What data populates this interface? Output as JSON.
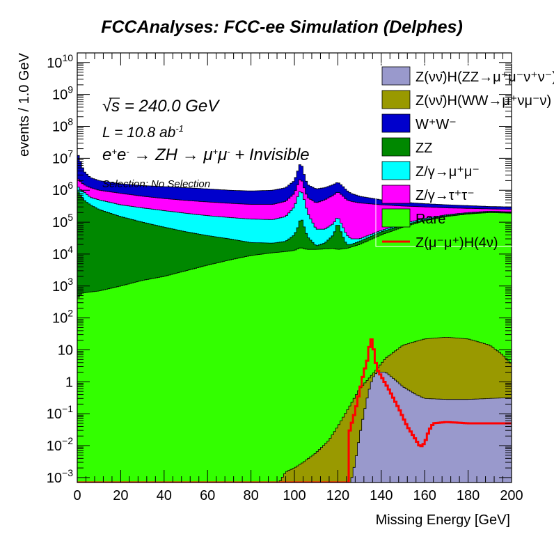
{
  "chart_data": {
    "type": "area",
    "stacked": true,
    "title": "FCCAnalyses: FCC-ee Simulation (Delphes)",
    "xlabel": "Missing Energy [GeV]",
    "ylabel": "events / 1.0 GeV",
    "xlim": [
      0,
      200
    ],
    "ylim": [
      0.0007,
      20000000000
    ],
    "yscale": "log",
    "xticks": [
      0,
      20,
      40,
      60,
      80,
      100,
      120,
      140,
      160,
      180,
      200
    ],
    "yticks": [
      {
        "value": 0.001,
        "label": "10^-3",
        "base": "10",
        "exp": "−3"
      },
      {
        "value": 0.01,
        "label": "10^-2",
        "base": "10",
        "exp": "−2"
      },
      {
        "value": 0.1,
        "label": "10^-1",
        "base": "10",
        "exp": "−1"
      },
      {
        "value": 1,
        "label": "1",
        "base": "1",
        "exp": ""
      },
      {
        "value": 10,
        "label": "10",
        "base": "10",
        "exp": ""
      },
      {
        "value": 100,
        "label": "10^2",
        "base": "10",
        "exp": "2"
      },
      {
        "value": 1000,
        "label": "10^3",
        "base": "10",
        "exp": "3"
      },
      {
        "value": 10000,
        "label": "10^4",
        "base": "10",
        "exp": "4"
      },
      {
        "value": 100000,
        "label": "10^5",
        "base": "10",
        "exp": "5"
      },
      {
        "value": 1000000,
        "label": "10^6",
        "base": "10",
        "exp": "6"
      },
      {
        "value": 10000000,
        "label": "10^7",
        "base": "10",
        "exp": "7"
      },
      {
        "value": 100000000,
        "label": "10^8",
        "base": "10",
        "exp": "8"
      },
      {
        "value": 1000000000,
        "label": "10^9",
        "base": "10",
        "exp": "9"
      },
      {
        "value": 10000000000,
        "label": "10^10",
        "base": "10",
        "exp": "10"
      }
    ],
    "annotations": {
      "sqrt_s": "√s = 240.0 GeV",
      "lumi": "L = 10.8 ab^-1",
      "process": "e+e- → ZH → μ+μ- + Invisible",
      "selection": "Selection: No Selection"
    },
    "legend_position": "top-right",
    "series_note": "values are cumulative stack heights (events / 1.0 GeV) at the listed x points; red signal is drawn unstacked",
    "series": [
      {
        "name": "Z(νν̄)H(ZZ→μ+μ-ν+ν-)",
        "legend": "Z(νν̄)H(ZZ→μ⁺μ⁻ν⁺ν⁻)",
        "color": "#9999cc",
        "stacked": true,
        "x": [
          0,
          126,
          128,
          130,
          132,
          134,
          136,
          138,
          142,
          146,
          150,
          156,
          160,
          170,
          180,
          190,
          200
        ],
        "values": [
          0.0007,
          0.0007,
          0.003,
          0.02,
          0.1,
          0.45,
          1.3,
          2.0,
          2.0,
          1.2,
          0.7,
          0.4,
          0.3,
          0.28,
          0.28,
          0.3,
          0.32
        ]
      },
      {
        "name": "Z(νν̄)H(WW→μ+νμ-ν)",
        "legend": "Z(νν̄)H(WW→μ⁺νμ⁻ν)",
        "color": "#999900",
        "stacked": true,
        "x": [
          0,
          93,
          96,
          100,
          104,
          110,
          116,
          120,
          126,
          130,
          134,
          138,
          142,
          150,
          160,
          170,
          180,
          190,
          196,
          200
        ],
        "values": [
          0.0007,
          0.0007,
          0.0015,
          0.002,
          0.003,
          0.006,
          0.015,
          0.04,
          0.2,
          0.6,
          1.2,
          2.5,
          5.5,
          14,
          22,
          25,
          22,
          14,
          7,
          3.5
        ]
      },
      {
        "name": "Rare",
        "legend": "Rare",
        "color": "#33ff00",
        "stacked": true,
        "x": [
          0,
          2,
          10,
          20,
          30,
          40,
          50,
          60,
          70,
          80,
          90,
          96,
          100,
          102,
          103,
          104,
          106,
          110,
          114,
          118,
          120,
          124,
          130,
          140,
          150,
          160,
          170,
          180,
          190,
          200
        ],
        "values": [
          400,
          600,
          700,
          1000,
          1500,
          2000,
          3000,
          4500,
          6500,
          9000,
          11000,
          12000,
          13000,
          15000,
          16000,
          15000,
          14000,
          14000,
          14500,
          15000,
          14000,
          15000,
          20000,
          40000,
          70000,
          110000,
          150000,
          180000,
          200000,
          190000
        ]
      },
      {
        "name": "Z(μ-μ+)H(4ν)",
        "legend": "Z(μ⁻μ⁺)H(4ν)",
        "color": "#ff0000",
        "stacked": false,
        "x": [
          0,
          125,
          125.5,
          128,
          130,
          132,
          134,
          135,
          136,
          137,
          138,
          140,
          144,
          148,
          152,
          156,
          158,
          160,
          162,
          164,
          170,
          180,
          190,
          200
        ],
        "values": [
          0.0007,
          0.0007,
          0.03,
          0.12,
          0.5,
          2.0,
          6.0,
          25,
          18,
          6.0,
          2.5,
          1.5,
          0.5,
          0.15,
          0.04,
          0.015,
          0.009,
          0.012,
          0.03,
          0.05,
          0.055,
          0.05,
          0.05,
          0.05
        ]
      },
      {
        "name": "ZZ",
        "legend": "ZZ",
        "color": "#008800",
        "stacked": true,
        "x": [
          0,
          1,
          3,
          6,
          10,
          20,
          30,
          40,
          50,
          60,
          70,
          80,
          90,
          96,
          100,
          102,
          103,
          104,
          106,
          110,
          114,
          118,
          120,
          122,
          124,
          126,
          130,
          140,
          150,
          160,
          170,
          180,
          190,
          200
        ],
        "values": [
          1000000,
          800000,
          500000,
          350000,
          250000,
          150000,
          100000,
          70000,
          50000,
          38000,
          30000,
          23000,
          22000,
          25000,
          40000,
          80000,
          150000,
          90000,
          35000,
          18000,
          22000,
          40000,
          100000,
          40000,
          20000,
          20000,
          25000,
          50000,
          80000,
          120000,
          160000,
          190000,
          210000,
          200000
        ]
      },
      {
        "name": "Z/γ→μ+μ-",
        "legend": "Z/γ→μ⁺μ⁻",
        "color": "#00ffff",
        "stacked": true,
        "x": [
          0,
          1,
          3,
          6,
          10,
          20,
          30,
          40,
          50,
          60,
          70,
          80,
          90,
          96,
          100,
          102,
          103,
          104,
          106,
          110,
          114,
          118,
          120,
          122,
          124,
          126,
          130,
          140,
          150,
          160,
          170,
          180,
          190,
          200
        ],
        "values": [
          1400000,
          1100000,
          900000,
          600000,
          500000,
          350000,
          280000,
          230000,
          190000,
          160000,
          140000,
          125000,
          120000,
          150000,
          300000,
          800000,
          1000000,
          700000,
          200000,
          60000,
          60000,
          90000,
          150000,
          80000,
          40000,
          30000,
          30000,
          55000,
          90000,
          130000,
          170000,
          200000,
          220000,
          210000
        ]
      },
      {
        "name": "Z/γ→τ+τ-",
        "legend": "Z/γ→τ⁺τ⁻",
        "color": "#ff00ff",
        "stacked": true,
        "x": [
          0,
          1,
          3,
          6,
          10,
          20,
          30,
          40,
          50,
          60,
          70,
          80,
          90,
          96,
          100,
          102,
          103,
          104,
          106,
          110,
          114,
          118,
          120,
          122,
          124,
          126,
          130,
          140,
          150,
          160,
          170,
          180,
          190,
          200
        ],
        "values": [
          2500000,
          2000000,
          1500000,
          1200000,
          1000000,
          800000,
          650000,
          550000,
          480000,
          430000,
          390000,
          360000,
          360000,
          450000,
          800000,
          1800000,
          2500000,
          1500000,
          600000,
          400000,
          500000,
          700000,
          900000,
          700000,
          500000,
          450000,
          400000,
          350000,
          320000,
          300000,
          280000,
          270000,
          260000,
          250000
        ]
      },
      {
        "name": "W+W-",
        "legend": "W⁺W⁻",
        "color": "#0000cc",
        "stacked": true,
        "x": [
          0,
          1,
          3,
          6,
          10,
          20,
          30,
          40,
          50,
          60,
          70,
          80,
          90,
          96,
          100,
          102,
          103,
          104,
          106,
          110,
          114,
          118,
          120,
          122,
          124,
          126,
          130,
          140,
          150,
          160,
          170,
          180,
          190,
          200
        ],
        "values": [
          15000000,
          10000000,
          4000000,
          2500000,
          2000000,
          1600000,
          1400000,
          1300000,
          1200000,
          1100000,
          1000000,
          950000,
          1000000,
          1200000,
          2000000,
          5000000,
          8000000,
          4000000,
          1500000,
          1100000,
          1200000,
          1500000,
          1800000,
          1400000,
          1000000,
          800000,
          650000,
          500000,
          420000,
          380000,
          350000,
          330000,
          310000,
          300000
        ]
      }
    ]
  }
}
